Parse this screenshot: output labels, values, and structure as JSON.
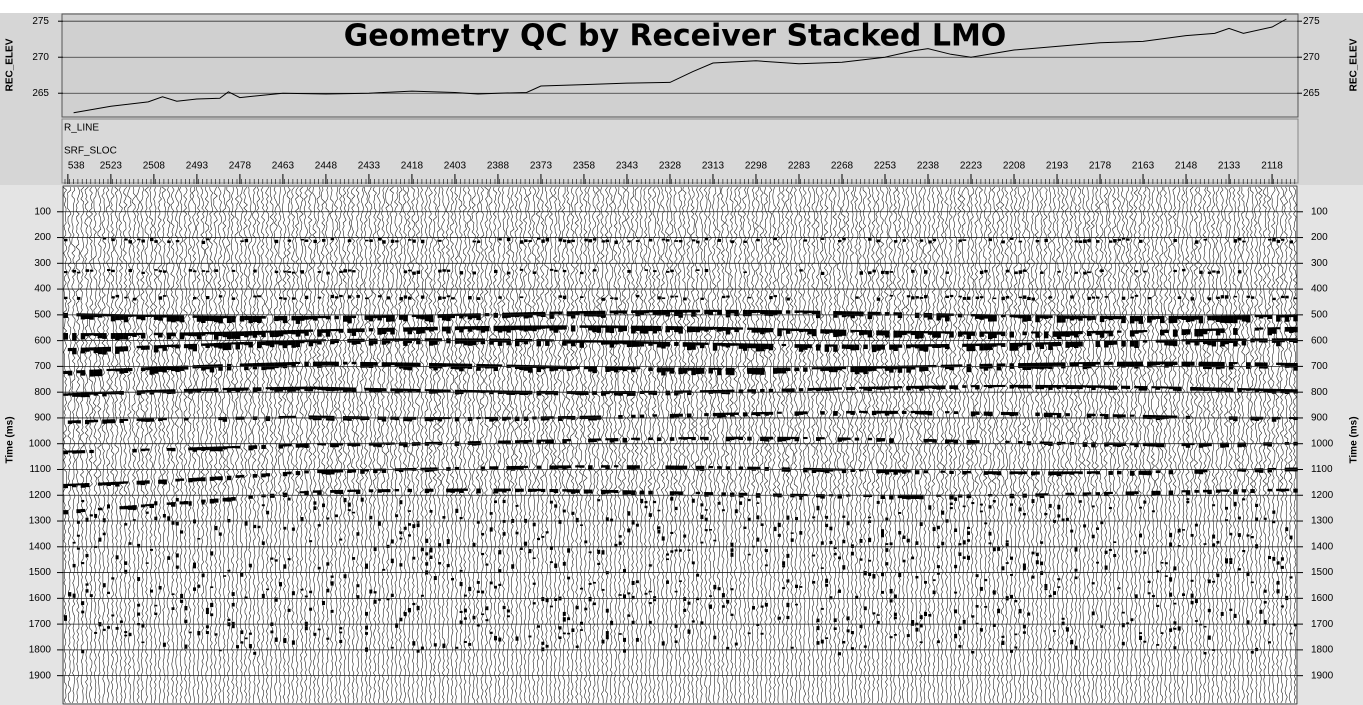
{
  "chart_data": [
    {
      "type": "line",
      "title": "Geometry QC by Receiver Stacked LMO",
      "ylabel": "REC_ELEV",
      "color": "#000000",
      "x": [
        2536,
        2523,
        2510,
        2505,
        2500,
        2493,
        2485,
        2482,
        2478,
        2463,
        2448,
        2433,
        2418,
        2403,
        2395,
        2388,
        2378,
        2373,
        2358,
        2343,
        2328,
        2320,
        2313,
        2298,
        2283,
        2268,
        2253,
        2243,
        2238,
        2230,
        2223,
        2208,
        2193,
        2178,
        2163,
        2148,
        2138,
        2133,
        2128,
        2118,
        2113
      ],
      "values": [
        262.3,
        263.2,
        263.8,
        264.5,
        263.9,
        264.2,
        264.3,
        265.2,
        264.4,
        265.0,
        264.9,
        265.0,
        265.3,
        265.1,
        264.9,
        265.0,
        265.1,
        266.0,
        266.2,
        266.4,
        266.5,
        268.0,
        269.2,
        269.5,
        269.1,
        269.3,
        270.0,
        270.9,
        271.2,
        270.4,
        270.0,
        271.0,
        271.5,
        272.0,
        272.2,
        273.0,
        273.3,
        274.0,
        273.3,
        274.2,
        275.3
      ],
      "xlim": [
        2539.7,
        2109.3
      ],
      "ylim": [
        261.7,
        276
      ],
      "yticks": [
        265,
        270,
        275
      ],
      "grid": true
    },
    {
      "type": "wiggle",
      "ylabel": "Time (ms)",
      "header_label": "R_LINE",
      "xlabel": "SRF_SLOC",
      "xlim": [
        2539.7,
        2109.3
      ],
      "xticks": [
        {
          "value": 2538,
          "label": "538"
        },
        2523,
        2508,
        2493,
        2478,
        2463,
        2448,
        2433,
        2418,
        2403,
        2388,
        2373,
        2358,
        2343,
        2328,
        2313,
        2298,
        2283,
        2268,
        2253,
        2238,
        2223,
        2208,
        2193,
        2178,
        2163,
        2148,
        2133,
        2118
      ],
      "ylim": [
        0,
        2010
      ],
      "yticks": [
        100,
        200,
        300,
        400,
        500,
        600,
        700,
        800,
        900,
        1000,
        1100,
        1200,
        1300,
        1400,
        1500,
        1600,
        1700,
        1800,
        1900
      ],
      "grid": true
    }
  ]
}
